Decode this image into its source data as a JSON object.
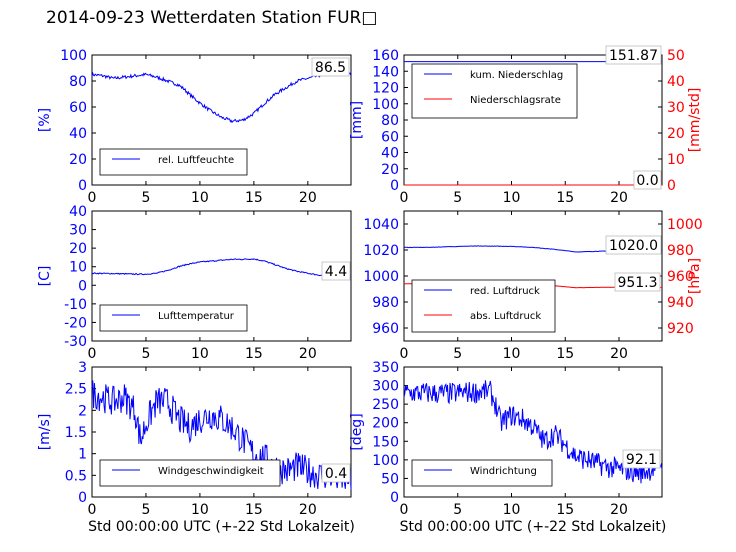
{
  "page": {
    "title": "2014-09-23 Wetterdaten Station FUR□"
  },
  "colors": {
    "primary": "#0000ff",
    "secondary": "#ff0000"
  },
  "chart_data": [
    {
      "id": "humidity",
      "type": "line",
      "ylabel": "[%]",
      "ylim": [
        0,
        100
      ],
      "yticks": [
        0,
        20,
        40,
        60,
        80,
        100
      ],
      "xlim": [
        0,
        24
      ],
      "xticks": [
        0,
        5,
        10,
        15,
        20
      ],
      "xlabel": "",
      "last_value": "86.5",
      "series": [
        {
          "name": "rel. Luftfeuchte",
          "color": "#0000ff",
          "axis": "left",
          "x": [
            0,
            1,
            2,
            3,
            4,
            5,
            5.5,
            6,
            7,
            8,
            8.5,
            9,
            10,
            11,
            12,
            13,
            14,
            15,
            16,
            17,
            18,
            19,
            20,
            21,
            22,
            23,
            24
          ],
          "y": [
            85,
            84,
            82,
            83,
            84,
            85,
            84,
            83,
            80,
            77,
            74,
            70,
            63,
            57,
            52,
            49,
            50,
            55,
            63,
            70,
            75,
            80,
            82,
            84,
            86,
            86,
            86.5
          ],
          "noise": 1.2
        }
      ]
    },
    {
      "id": "precip",
      "type": "line",
      "ylabel": "[mm]",
      "ylim": [
        0,
        160
      ],
      "yticks": [
        0,
        20,
        40,
        60,
        80,
        100,
        120,
        140,
        160
      ],
      "y2label": "[mm/std]",
      "y2lim": [
        0,
        50
      ],
      "y2ticks": [
        0,
        10,
        20,
        30,
        40,
        50
      ],
      "xlim": [
        0,
        24
      ],
      "xticks": [
        0,
        5,
        10,
        15,
        20
      ],
      "xlabel": "",
      "last_value": "151.87",
      "last_value2": "0.0",
      "series": [
        {
          "name": "kum. Niederschlag",
          "color": "#0000ff",
          "axis": "left",
          "x": [
            0,
            24
          ],
          "y": [
            151.87,
            151.87
          ],
          "noise": 0
        },
        {
          "name": "Niederschlagsrate",
          "color": "#ff0000",
          "axis": "right",
          "x": [
            0,
            24
          ],
          "y": [
            0,
            0
          ],
          "noise": 0
        }
      ]
    },
    {
      "id": "temperature",
      "type": "line",
      "ylabel": "[C]",
      "ylim": [
        -30,
        40
      ],
      "yticks": [
        -30,
        -20,
        -10,
        0,
        10,
        20,
        30,
        40
      ],
      "xlim": [
        0,
        24
      ],
      "xticks": [
        0,
        5,
        10,
        15,
        20
      ],
      "xlabel": "",
      "last_value": "4.4",
      "series": [
        {
          "name": "Lufttemperatur",
          "color": "#0000ff",
          "axis": "left",
          "x": [
            0,
            2,
            4,
            5,
            6,
            7,
            8,
            9,
            10,
            11,
            12,
            13,
            14,
            15,
            16,
            17,
            18,
            19,
            20,
            21,
            22,
            23,
            24
          ],
          "y": [
            6.5,
            6.3,
            6,
            6,
            6.5,
            8,
            10,
            11.5,
            12.5,
            13,
            13.5,
            14,
            14,
            14.2,
            13,
            11,
            9,
            7.5,
            6.5,
            5.5,
            5,
            4.6,
            4.4
          ],
          "noise": 0.3
        }
      ]
    },
    {
      "id": "pressure",
      "type": "line",
      "ylim": [
        950,
        1050
      ],
      "yticks": [
        960,
        980,
        1000,
        1020,
        1040
      ],
      "y2label": "[hPa]",
      "y2lim": [
        910,
        1010
      ],
      "y2ticks": [
        920,
        940,
        960,
        980,
        1000
      ],
      "xlim": [
        0,
        24
      ],
      "xticks": [
        0,
        5,
        10,
        15,
        20
      ],
      "xlabel": "",
      "last_value": "1020.0",
      "last_value2": "951.3",
      "series": [
        {
          "name": "red. Luftdruck",
          "color": "#0000ff",
          "axis": "left",
          "x": [
            0,
            2,
            4,
            6,
            8,
            10,
            12,
            14,
            16,
            18,
            20,
            22,
            24
          ],
          "y": [
            1022,
            1022,
            1022.5,
            1023,
            1023,
            1022.8,
            1022,
            1020.5,
            1018.5,
            1019,
            1019.5,
            1020,
            1020
          ],
          "noise": 0.15
        },
        {
          "name": "abs. Luftdruck",
          "color": "#ff0000",
          "axis": "right",
          "x": [
            0,
            2,
            4,
            6,
            8,
            10,
            12,
            14,
            16,
            18,
            20,
            22,
            24
          ],
          "y": [
            954,
            954,
            954.5,
            955,
            955,
            954.6,
            953.8,
            952.5,
            951,
            951.2,
            951.4,
            951.3,
            951.3
          ],
          "noise": 0.1
        }
      ]
    },
    {
      "id": "wind_speed",
      "type": "line",
      "ylabel": "[m/s]",
      "ylim": [
        0,
        3
      ],
      "yticks": [
        0,
        0.5,
        1,
        1.5,
        2,
        2.5,
        3
      ],
      "xlim": [
        0,
        24
      ],
      "xticks": [
        0,
        5,
        10,
        15,
        20
      ],
      "xlabel": "Std 00:00:00 UTC (+-22 Std Lokalzeit)",
      "last_value": "0.4",
      "series": [
        {
          "name": "Windgeschwindigkeit",
          "color": "#0000ff",
          "axis": "left",
          "x": [
            0,
            1,
            2,
            3,
            4,
            4.5,
            5,
            6,
            7,
            8,
            9,
            10,
            11,
            12,
            13,
            14,
            15,
            16,
            17,
            18,
            19,
            20,
            21,
            22,
            23,
            24
          ],
          "y": [
            2.4,
            2.3,
            2.2,
            2.3,
            2.0,
            1.3,
            1.7,
            2.2,
            2.2,
            1.8,
            1.6,
            1.8,
            1.9,
            1.8,
            1.6,
            1.3,
            1.0,
            0.9,
            0.7,
            0.6,
            0.7,
            0.6,
            0.5,
            0.5,
            0.4,
            0.4
          ],
          "noise": 0.35
        }
      ]
    },
    {
      "id": "wind_dir",
      "type": "line",
      "ylabel": "[deg]",
      "ylim": [
        0,
        350
      ],
      "yticks": [
        0,
        50,
        100,
        150,
        200,
        250,
        300,
        350
      ],
      "xlim": [
        0,
        24
      ],
      "xticks": [
        0,
        5,
        10,
        15,
        20
      ],
      "xlabel": "Std 00:00:00 UTC (+-22 Std Lokalzeit)",
      "last_value": "92.1",
      "series": [
        {
          "name": "Windrichtung",
          "color": "#0000ff",
          "axis": "left",
          "x": [
            0,
            2,
            4,
            6,
            8,
            8.5,
            9,
            10,
            11,
            12,
            13,
            14,
            15,
            16,
            17,
            18,
            19,
            20,
            21,
            22,
            23,
            24
          ],
          "y": [
            280,
            280,
            278,
            282,
            285,
            250,
            200,
            220,
            210,
            190,
            150,
            170,
            140,
            110,
            100,
            90,
            80,
            75,
            70,
            65,
            75,
            92
          ],
          "noise": 30
        }
      ]
    }
  ]
}
